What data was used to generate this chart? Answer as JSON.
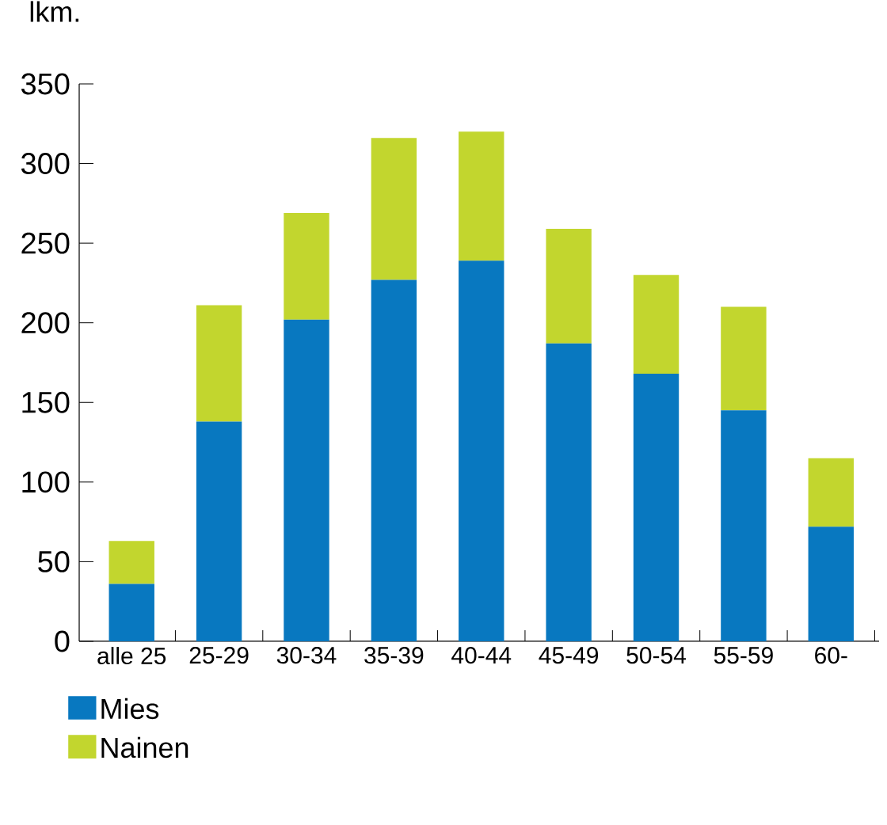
{
  "chart_data": {
    "type": "bar",
    "stacked": true,
    "ylabel": "lkm.",
    "categories": [
      "alle 25",
      "25-29",
      "30-34",
      "35-39",
      "40-44",
      "45-49",
      "50-54",
      "55-59",
      "60-"
    ],
    "series": [
      {
        "name": "Mies",
        "color": "#0878c0",
        "values": [
          36,
          138,
          202,
          227,
          239,
          187,
          168,
          145,
          72
        ]
      },
      {
        "name": "Nainen",
        "color": "#c2d62e",
        "values": [
          27,
          73,
          67,
          89,
          81,
          72,
          62,
          65,
          43
        ]
      }
    ],
    "ylim": [
      0,
      350
    ],
    "yticks": [
      0,
      50,
      100,
      150,
      200,
      250,
      300,
      350
    ],
    "legend": "bottom"
  }
}
